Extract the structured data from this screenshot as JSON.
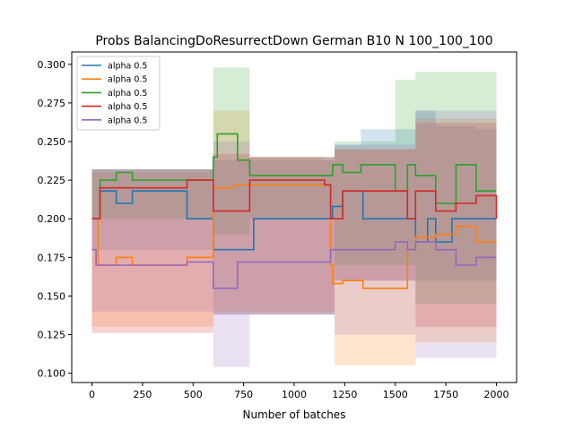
{
  "chart_data": {
    "type": "line",
    "title": "Probs BalancingDoResurrectDown German B10 N 100_100_100",
    "xlabel": "Number of batches",
    "ylabel": "",
    "xlim": [
      -100,
      2100
    ],
    "ylim": [
      0.094,
      0.308
    ],
    "x_ticks": [
      0,
      250,
      500,
      750,
      1000,
      1250,
      1500,
      1750,
      2000
    ],
    "y_ticks": [
      0.1,
      0.125,
      0.15,
      0.175,
      0.2,
      0.225,
      0.25,
      0.275,
      0.3
    ],
    "x_tick_labels": [
      "0",
      "250",
      "500",
      "750",
      "1000",
      "1250",
      "1500",
      "1750",
      "2000"
    ],
    "y_tick_labels": [
      "0.100",
      "0.125",
      "0.150",
      "0.175",
      "0.200",
      "0.225",
      "0.250",
      "0.275",
      "0.300"
    ],
    "grid": false,
    "legend_position": "upper-left",
    "series": [
      {
        "name": "alpha 0.5",
        "color": "#1f77b4",
        "points": [
          [
            0,
            0.2
          ],
          [
            40,
            0.218
          ],
          [
            120,
            0.21
          ],
          [
            200,
            0.218
          ],
          [
            400,
            0.218
          ],
          [
            470,
            0.2
          ],
          [
            580,
            0.2
          ],
          [
            600,
            0.18
          ],
          [
            780,
            0.18
          ],
          [
            800,
            0.2
          ],
          [
            1150,
            0.2
          ],
          [
            1190,
            0.208
          ],
          [
            1240,
            0.218
          ],
          [
            1330,
            0.218
          ],
          [
            1340,
            0.2
          ],
          [
            1500,
            0.2
          ],
          [
            1560,
            0.2
          ],
          [
            1600,
            0.185
          ],
          [
            1660,
            0.2
          ],
          [
            1700,
            0.185
          ],
          [
            1780,
            0.2
          ],
          [
            1900,
            0.2
          ],
          [
            1960,
            0.2
          ],
          [
            2000,
            0.2
          ]
        ],
        "band_upper": [
          [
            0,
            0.232
          ],
          [
            580,
            0.232
          ],
          [
            600,
            0.238
          ],
          [
            1150,
            0.238
          ],
          [
            1200,
            0.248
          ],
          [
            1330,
            0.258
          ],
          [
            1500,
            0.258
          ],
          [
            1600,
            0.27
          ],
          [
            1700,
            0.26
          ],
          [
            1900,
            0.258
          ],
          [
            2000,
            0.258
          ]
        ],
        "band_lower": [
          [
            0,
            0.18
          ],
          [
            580,
            0.18
          ],
          [
            600,
            0.138
          ],
          [
            780,
            0.138
          ],
          [
            1150,
            0.138
          ],
          [
            1200,
            0.16
          ],
          [
            1500,
            0.16
          ],
          [
            2000,
            0.16
          ]
        ]
      },
      {
        "name": "alpha 0.5",
        "color": "#ff7f0e",
        "points": [
          [
            0,
            0.2
          ],
          [
            30,
            0.17
          ],
          [
            120,
            0.175
          ],
          [
            200,
            0.17
          ],
          [
            400,
            0.17
          ],
          [
            470,
            0.175
          ],
          [
            580,
            0.175
          ],
          [
            600,
            0.22
          ],
          [
            700,
            0.222
          ],
          [
            780,
            0.222
          ],
          [
            1150,
            0.222
          ],
          [
            1180,
            0.17
          ],
          [
            1190,
            0.158
          ],
          [
            1240,
            0.16
          ],
          [
            1330,
            0.16
          ],
          [
            1340,
            0.155
          ],
          [
            1500,
            0.155
          ],
          [
            1560,
            0.18
          ],
          [
            1600,
            0.188
          ],
          [
            1700,
            0.19
          ],
          [
            1800,
            0.195
          ],
          [
            1900,
            0.185
          ],
          [
            2000,
            0.185
          ]
        ],
        "band_upper": [
          [
            0,
            0.23
          ],
          [
            580,
            0.232
          ],
          [
            600,
            0.27
          ],
          [
            780,
            0.24
          ],
          [
            1150,
            0.238
          ],
          [
            1200,
            0.245
          ],
          [
            1500,
            0.245
          ],
          [
            1600,
            0.265
          ],
          [
            2000,
            0.255
          ]
        ],
        "band_lower": [
          [
            0,
            0.13
          ],
          [
            580,
            0.13
          ],
          [
            600,
            0.14
          ],
          [
            1150,
            0.14
          ],
          [
            1200,
            0.105
          ],
          [
            1500,
            0.105
          ],
          [
            1600,
            0.12
          ],
          [
            2000,
            0.115
          ]
        ]
      },
      {
        "name": "alpha 0.5",
        "color": "#2ca02c",
        "points": [
          [
            0,
            0.2
          ],
          [
            40,
            0.225
          ],
          [
            120,
            0.23
          ],
          [
            200,
            0.225
          ],
          [
            400,
            0.225
          ],
          [
            470,
            0.225
          ],
          [
            580,
            0.225
          ],
          [
            600,
            0.24
          ],
          [
            620,
            0.255
          ],
          [
            720,
            0.238
          ],
          [
            780,
            0.228
          ],
          [
            1150,
            0.228
          ],
          [
            1190,
            0.235
          ],
          [
            1240,
            0.23
          ],
          [
            1330,
            0.235
          ],
          [
            1500,
            0.218
          ],
          [
            1560,
            0.235
          ],
          [
            1600,
            0.228
          ],
          [
            1700,
            0.21
          ],
          [
            1800,
            0.235
          ],
          [
            1900,
            0.218
          ],
          [
            2000,
            0.218
          ]
        ],
        "band_upper": [
          [
            0,
            0.232
          ],
          [
            580,
            0.232
          ],
          [
            600,
            0.298
          ],
          [
            720,
            0.298
          ],
          [
            780,
            0.24
          ],
          [
            1150,
            0.24
          ],
          [
            1200,
            0.25
          ],
          [
            1500,
            0.25
          ],
          [
            1500,
            0.29
          ],
          [
            1600,
            0.295
          ],
          [
            2000,
            0.285
          ]
        ],
        "band_lower": [
          [
            0,
            0.2
          ],
          [
            580,
            0.2
          ],
          [
            600,
            0.19
          ],
          [
            780,
            0.2
          ],
          [
            1150,
            0.2
          ],
          [
            1200,
            0.17
          ],
          [
            1500,
            0.17
          ],
          [
            1600,
            0.145
          ],
          [
            2000,
            0.15
          ]
        ]
      },
      {
        "name": "alpha 0.5",
        "color": "#d62728",
        "points": [
          [
            0,
            0.2
          ],
          [
            40,
            0.22
          ],
          [
            120,
            0.22
          ],
          [
            200,
            0.22
          ],
          [
            400,
            0.22
          ],
          [
            470,
            0.225
          ],
          [
            580,
            0.225
          ],
          [
            600,
            0.205
          ],
          [
            780,
            0.225
          ],
          [
            800,
            0.225
          ],
          [
            1150,
            0.222
          ],
          [
            1180,
            0.2
          ],
          [
            1240,
            0.218
          ],
          [
            1330,
            0.218
          ],
          [
            1500,
            0.218
          ],
          [
            1560,
            0.2
          ],
          [
            1600,
            0.218
          ],
          [
            1700,
            0.205
          ],
          [
            1800,
            0.21
          ],
          [
            1900,
            0.215
          ],
          [
            2000,
            0.2
          ]
        ],
        "band_upper": [
          [
            0,
            0.232
          ],
          [
            580,
            0.232
          ],
          [
            600,
            0.242
          ],
          [
            780,
            0.24
          ],
          [
            1150,
            0.24
          ],
          [
            1200,
            0.245
          ],
          [
            1500,
            0.245
          ],
          [
            1600,
            0.262
          ],
          [
            2000,
            0.255
          ]
        ],
        "band_lower": [
          [
            0,
            0.126
          ],
          [
            580,
            0.126
          ],
          [
            600,
            0.138
          ],
          [
            1150,
            0.138
          ],
          [
            1200,
            0.16
          ],
          [
            1500,
            0.16
          ],
          [
            1600,
            0.13
          ],
          [
            2000,
            0.125
          ]
        ]
      },
      {
        "name": "alpha 0.5",
        "color": "#9467bd",
        "points": [
          [
            0,
            0.18
          ],
          [
            20,
            0.17
          ],
          [
            120,
            0.17
          ],
          [
            200,
            0.17
          ],
          [
            400,
            0.17
          ],
          [
            470,
            0.172
          ],
          [
            580,
            0.172
          ],
          [
            600,
            0.155
          ],
          [
            700,
            0.155
          ],
          [
            720,
            0.172
          ],
          [
            780,
            0.172
          ],
          [
            1150,
            0.172
          ],
          [
            1180,
            0.18
          ],
          [
            1240,
            0.18
          ],
          [
            1330,
            0.18
          ],
          [
            1340,
            0.18
          ],
          [
            1500,
            0.185
          ],
          [
            1560,
            0.18
          ],
          [
            1600,
            0.185
          ],
          [
            1700,
            0.18
          ],
          [
            1800,
            0.17
          ],
          [
            1900,
            0.175
          ],
          [
            2000,
            0.175
          ]
        ],
        "band_upper": [
          [
            0,
            0.232
          ],
          [
            580,
            0.232
          ],
          [
            600,
            0.25
          ],
          [
            780,
            0.24
          ],
          [
            1150,
            0.24
          ],
          [
            1200,
            0.248
          ],
          [
            1500,
            0.248
          ],
          [
            1600,
            0.27
          ],
          [
            2000,
            0.255
          ]
        ],
        "band_lower": [
          [
            0,
            0.14
          ],
          [
            580,
            0.14
          ],
          [
            600,
            0.104
          ],
          [
            720,
            0.104
          ],
          [
            780,
            0.138
          ],
          [
            1150,
            0.138
          ],
          [
            1200,
            0.125
          ],
          [
            1500,
            0.125
          ],
          [
            1600,
            0.11
          ],
          [
            2000,
            0.112
          ]
        ]
      }
    ]
  }
}
